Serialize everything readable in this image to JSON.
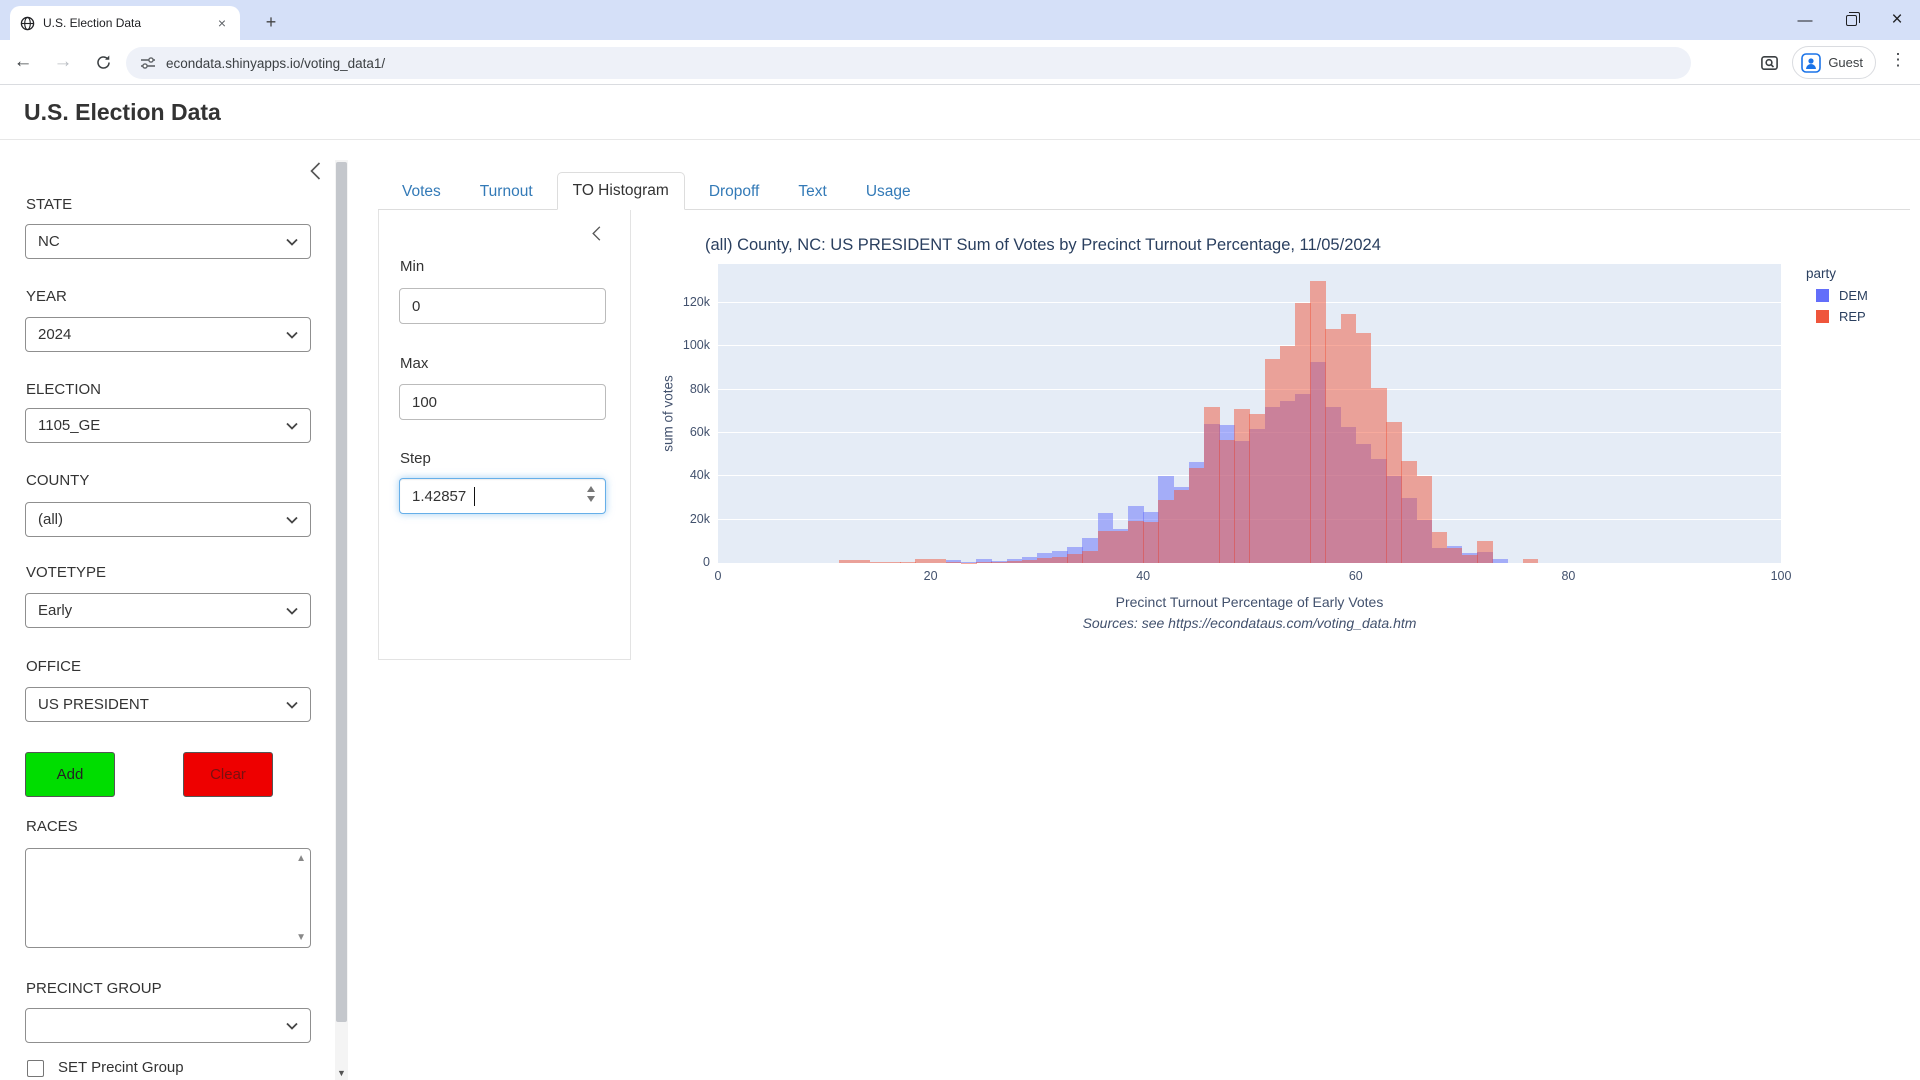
{
  "browser": {
    "tab_title": "U.S. Election Data",
    "url": "econdata.shinyapps.io/voting_data1/",
    "profile_label": "Guest"
  },
  "header": {
    "title": "U.S. Election Data"
  },
  "sidebar": {
    "fields": [
      {
        "label": "STATE",
        "value": "NC"
      },
      {
        "label": "YEAR",
        "value": "2024"
      },
      {
        "label": "ELECTION",
        "value": "1105_GE"
      },
      {
        "label": "COUNTY",
        "value": "(all)"
      },
      {
        "label": "VOTETYPE",
        "value": "Early"
      },
      {
        "label": "OFFICE",
        "value": "US PRESIDENT"
      }
    ],
    "add_label": "Add",
    "clear_label": "Clear",
    "add_color": "#00dd00",
    "clear_color": "#ee0000",
    "races_label": "RACES",
    "precinct_group_label": "PRECINCT GROUP",
    "precinct_group_value": "",
    "set_checkbox_label": "SET Precint Group"
  },
  "tabs": {
    "items": [
      {
        "label": "Votes",
        "active": false
      },
      {
        "label": "Turnout",
        "active": false
      },
      {
        "label": "TO Histogram",
        "active": true
      },
      {
        "label": "Dropoff",
        "active": false
      },
      {
        "label": "Text",
        "active": false
      },
      {
        "label": "Usage",
        "active": false
      }
    ]
  },
  "histogram_controls": {
    "min_label": "Min",
    "min_value": "0",
    "max_label": "Max",
    "max_value": "100",
    "step_label": "Step",
    "step_value": "1.42857"
  },
  "chart_data": {
    "type": "bar",
    "subtype": "overlaid-histogram",
    "title": "(all) County, NC: US PRESIDENT Sum of Votes by Precinct Turnout Percentage, 11/05/2024",
    "xlabel": "Precinct Turnout Percentage of Early Votes",
    "source_note": "Sources: see https://econdataus.com/voting_data.htm",
    "ylabel": "sum of votes",
    "legend_title": "party",
    "xlim": [
      0,
      100
    ],
    "ylim": [
      0,
      138000
    ],
    "grid": true,
    "plot_bg": "#e5ecf6",
    "bin_width": 1.42857,
    "bin_start": 0,
    "units": "thousands of votes per bin",
    "yticks": [
      {
        "v": 0,
        "label": "0"
      },
      {
        "v": 20,
        "label": "20k"
      },
      {
        "v": 40,
        "label": "40k"
      },
      {
        "v": 60,
        "label": "60k"
      },
      {
        "v": 80,
        "label": "80k"
      },
      {
        "v": 100,
        "label": "100k"
      },
      {
        "v": 120,
        "label": "120k"
      }
    ],
    "xticks": [
      0,
      20,
      40,
      60,
      80,
      100
    ],
    "series": [
      {
        "name": "DEM",
        "color": "#636efa",
        "opacity": 0.5,
        "values_k": [
          0,
          0,
          0,
          0,
          0,
          0,
          0,
          0,
          0,
          0,
          0,
          0,
          0,
          0,
          0,
          1.2,
          0.5,
          2,
          0.8,
          2,
          2.6,
          4.6,
          5.5,
          7.5,
          11.5,
          23,
          15.5,
          26.5,
          23.5,
          40,
          35,
          46.5,
          64,
          63.5,
          56.5,
          62,
          72,
          75,
          78,
          93,
          72,
          63,
          55,
          48,
          40,
          30,
          20,
          7,
          8,
          4.5,
          5,
          2,
          0,
          0,
          0,
          0,
          0,
          0,
          0,
          0,
          0,
          0,
          0,
          0,
          0,
          0,
          0,
          0,
          0,
          0
        ]
      },
      {
        "name": "REP",
        "color": "#ef553b",
        "opacity": 0.5,
        "values_k": [
          0,
          0,
          0,
          0,
          0,
          0,
          0,
          0,
          1.2,
          1.3,
          0.6,
          0.4,
          0.3,
          1.7,
          1.7,
          0.3,
          0.2,
          0.5,
          0.5,
          1,
          1.3,
          2.3,
          3,
          4.2,
          5.5,
          15,
          15,
          19.5,
          19,
          29,
          33.5,
          44,
          72,
          57,
          71,
          69,
          94,
          100,
          120,
          130,
          108,
          115,
          106,
          81,
          65,
          47,
          40,
          14.5,
          7,
          3.7,
          10,
          0,
          0,
          2,
          0,
          0,
          0,
          0,
          0,
          0,
          0,
          0,
          0,
          0,
          0,
          0,
          0,
          0,
          0,
          0
        ]
      }
    ]
  }
}
